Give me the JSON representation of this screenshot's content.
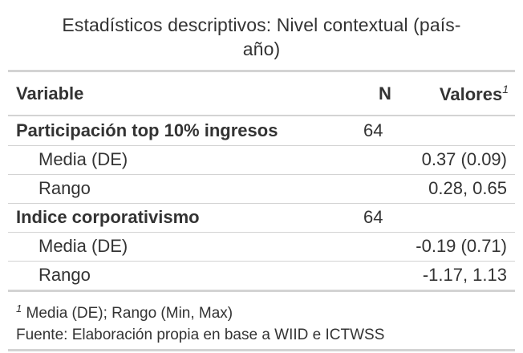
{
  "title": "Estadísticos descriptivos: Nivel contextual (país-año)",
  "title_line1": "Estadísticos descriptivos: Nivel contextual (país-",
  "title_line2": "año)",
  "header": {
    "variable": "Variable",
    "n": "N",
    "values": "Valores",
    "values_marker": "1"
  },
  "rows": [
    {
      "type": "group",
      "variable": "Participación top 10% ingresos",
      "n": "64",
      "value": ""
    },
    {
      "type": "sub",
      "variable": "Media (DE)",
      "n": "",
      "value": "0.37 (0.09)"
    },
    {
      "type": "sub",
      "variable": "Rango",
      "n": "",
      "value": "0.28, 0.65"
    },
    {
      "type": "group",
      "variable": "Indice corporativismo",
      "n": "64",
      "value": ""
    },
    {
      "type": "sub",
      "variable": "Media (DE)",
      "n": "",
      "value": "-0.19 (0.71)"
    },
    {
      "type": "sub",
      "variable": "Rango",
      "n": "",
      "value": "-1.17, 1.13"
    }
  ],
  "footnotes": {
    "marker": "1",
    "note": "Media (DE); Rango (Min, Max)",
    "source": "Fuente: Elaboración propia en base a WIID e ICTWSS"
  }
}
